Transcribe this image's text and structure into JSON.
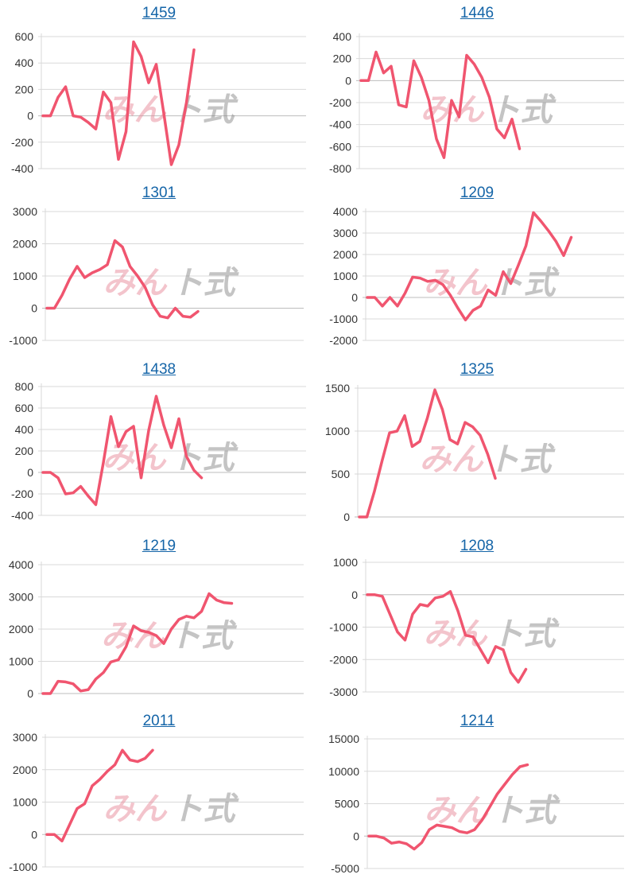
{
  "colors": {
    "line": "#f0556f",
    "grid": "#d9d9d9",
    "title": "#1565a8",
    "tick": "#333333"
  },
  "watermark": {
    "part1": "みん",
    "part2": "ト式"
  },
  "chart_data": [
    {
      "type": "line",
      "title": "1459",
      "ylim": [
        -400,
        600
      ],
      "yticks": [
        600,
        400,
        200,
        0,
        -200,
        -400
      ],
      "grid": true,
      "values": [
        0,
        0,
        140,
        220,
        0,
        -10,
        -50,
        -100,
        180,
        100,
        -330,
        -120,
        560,
        450,
        250,
        390,
        20,
        -370,
        -220,
        100,
        500
      ]
    },
    {
      "type": "line",
      "title": "1446",
      "ylim": [
        -800,
        400
      ],
      "yticks": [
        400,
        200,
        0,
        -200,
        -400,
        -600,
        -800
      ],
      "grid": true,
      "values": [
        0,
        0,
        260,
        70,
        130,
        -220,
        -240,
        180,
        30,
        -180,
        -530,
        -700,
        -180,
        -330,
        230,
        150,
        30,
        -150,
        -440,
        -520,
        -350,
        -620
      ]
    },
    {
      "type": "line",
      "title": "1301",
      "ylim": [
        -1000,
        3000
      ],
      "yticks": [
        3000,
        2000,
        1000,
        0,
        -1000
      ],
      "grid": true,
      "values": [
        0,
        0,
        400,
        900,
        1300,
        950,
        1100,
        1200,
        1350,
        2100,
        1900,
        1300,
        1000,
        650,
        100,
        -250,
        -300,
        0,
        -250,
        -280,
        -100
      ]
    },
    {
      "type": "line",
      "title": "1209",
      "ylim": [
        -2000,
        4000
      ],
      "yticks": [
        4000,
        3000,
        2000,
        1000,
        0,
        -1000,
        -2000
      ],
      "grid": true,
      "values": [
        0,
        0,
        -400,
        0,
        -400,
        200,
        950,
        900,
        750,
        800,
        600,
        100,
        -500,
        -1050,
        -600,
        -400,
        350,
        100,
        1200,
        650,
        1500,
        2400,
        3950,
        3550,
        3100,
        2600,
        1950,
        2800
      ]
    },
    {
      "type": "line",
      "title": "1438",
      "ylim": [
        -400,
        800
      ],
      "yticks": [
        800,
        600,
        400,
        200,
        0,
        -200,
        -400
      ],
      "grid": true,
      "values": [
        0,
        0,
        -50,
        -200,
        -190,
        -130,
        -220,
        -300,
        90,
        520,
        240,
        380,
        430,
        -50,
        390,
        710,
        440,
        230,
        500,
        150,
        20,
        -50
      ]
    },
    {
      "type": "line",
      "title": "1325",
      "ylim": [
        0,
        1500
      ],
      "yticks": [
        1500,
        1000,
        500,
        0
      ],
      "grid": true,
      "values": [
        0,
        0,
        300,
        650,
        980,
        1000,
        1180,
        820,
        880,
        1150,
        1480,
        1250,
        900,
        850,
        1100,
        1050,
        950,
        730,
        450
      ]
    },
    {
      "type": "line",
      "title": "1219",
      "ylim": [
        0,
        4000
      ],
      "yticks": [
        4000,
        3000,
        2000,
        1000,
        0
      ],
      "grid": true,
      "values": [
        0,
        0,
        380,
        360,
        300,
        80,
        120,
        450,
        650,
        980,
        1050,
        1450,
        2100,
        1950,
        1900,
        1800,
        1550,
        2000,
        2300,
        2400,
        2350,
        2550,
        3100,
        2900,
        2820,
        2800
      ]
    },
    {
      "type": "line",
      "title": "1208",
      "ylim": [
        -3000,
        1000
      ],
      "yticks": [
        1000,
        0,
        -1000,
        -2000,
        -3000
      ],
      "grid": true,
      "values": [
        0,
        0,
        -50,
        -600,
        -1150,
        -1400,
        -600,
        -300,
        -350,
        -100,
        -50,
        100,
        -500,
        -1250,
        -1300,
        -1700,
        -2100,
        -1600,
        -1700,
        -2400,
        -2700,
        -2300
      ]
    },
    {
      "type": "line",
      "title": "2011",
      "ylim": [
        -1000,
        3000
      ],
      "yticks": [
        3000,
        2000,
        1000,
        0,
        -1000
      ],
      "grid": true,
      "values": [
        0,
        0,
        -200,
        300,
        800,
        950,
        1500,
        1700,
        1950,
        2150,
        2600,
        2300,
        2250,
        2350,
        2600
      ]
    },
    {
      "type": "line",
      "title": "1214",
      "ylim": [
        -5000,
        15000
      ],
      "yticks": [
        15000,
        10000,
        5000,
        0,
        -5000
      ],
      "grid": true,
      "values": [
        0,
        0,
        -300,
        -1100,
        -900,
        -1200,
        -2000,
        -1000,
        1000,
        1700,
        1500,
        1300,
        700,
        500,
        1000,
        2500,
        4500,
        6500,
        8000,
        9500,
        10700,
        11000
      ]
    }
  ]
}
